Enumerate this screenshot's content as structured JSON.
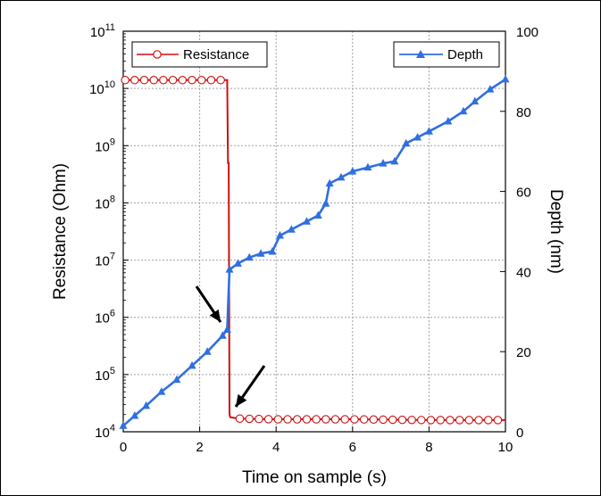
{
  "chart_data": {
    "type": "line",
    "xlabel": "Time on sample (s)",
    "ylabel_left": "Resistance (Ohm)",
    "ylabel_right": "Depth (nm)",
    "xlim": [
      0,
      10
    ],
    "ylim_left": [
      10000,
      100000000000
    ],
    "ylim_right": [
      0,
      100
    ],
    "left_scale": "log",
    "grid": true,
    "x_ticks": [
      "0",
      "2",
      "4",
      "6",
      "8",
      "10"
    ],
    "y_left_ticks": [
      {
        "base": "10",
        "exp": "4"
      },
      {
        "base": "10",
        "exp": "5"
      },
      {
        "base": "10",
        "exp": "6"
      },
      {
        "base": "10",
        "exp": "7"
      },
      {
        "base": "10",
        "exp": "8"
      },
      {
        "base": "10",
        "exp": "9"
      },
      {
        "base": "10",
        "exp": "10"
      },
      {
        "base": "10",
        "exp": "11"
      }
    ],
    "y_right_ticks": [
      "0",
      "20",
      "40",
      "60",
      "80",
      "100"
    ],
    "series": [
      {
        "name": "Resistance",
        "axis": "left",
        "color": "#d01010",
        "marker": "open-circle",
        "legend_position": "top-left",
        "x": [
          0,
          2.72,
          2.74,
          2.76,
          2.78,
          2.8,
          3.0,
          4.0,
          6.0,
          8.0,
          10.0
        ],
        "y": [
          14000000000,
          14000000000,
          500000000,
          500000000,
          20000,
          18000,
          17000,
          16500,
          16500,
          16000,
          16000
        ],
        "marker_x": [
          0.05,
          0.3,
          0.55,
          0.8,
          1.05,
          1.3,
          1.55,
          1.8,
          2.05,
          2.3,
          2.55,
          3.05,
          3.3,
          3.55,
          3.8,
          4.05,
          4.3,
          4.55,
          4.8,
          5.05,
          5.3,
          5.55,
          5.8,
          6.05,
          6.3,
          6.55,
          6.8,
          7.05,
          7.3,
          7.55,
          7.8,
          8.05,
          8.3,
          8.55,
          8.8,
          9.05,
          9.3,
          9.55,
          9.8
        ]
      },
      {
        "name": "Depth",
        "axis": "right",
        "color": "#2f6fe0",
        "marker": "filled-triangle",
        "legend_position": "top-right",
        "x": [
          0,
          0.3,
          0.6,
          1.0,
          1.4,
          1.8,
          2.2,
          2.6,
          2.72,
          2.78,
          3.0,
          3.3,
          3.6,
          3.9,
          4.1,
          4.4,
          4.8,
          5.1,
          5.3,
          5.4,
          5.7,
          6.0,
          6.4,
          6.8,
          7.1,
          7.4,
          7.7,
          8.0,
          8.5,
          8.9,
          9.2,
          9.6,
          10.0
        ],
        "y": [
          1.5,
          4.0,
          6.5,
          10.0,
          13.0,
          16.5,
          20.0,
          24.0,
          25.5,
          40.5,
          42.0,
          43.5,
          44.5,
          45.0,
          49.0,
          50.5,
          52.5,
          54.0,
          57.0,
          62.0,
          63.5,
          65.0,
          66.0,
          67.0,
          67.5,
          72.0,
          73.5,
          75.0,
          77.5,
          80.0,
          82.5,
          85.5,
          88.0
        ]
      }
    ]
  }
}
